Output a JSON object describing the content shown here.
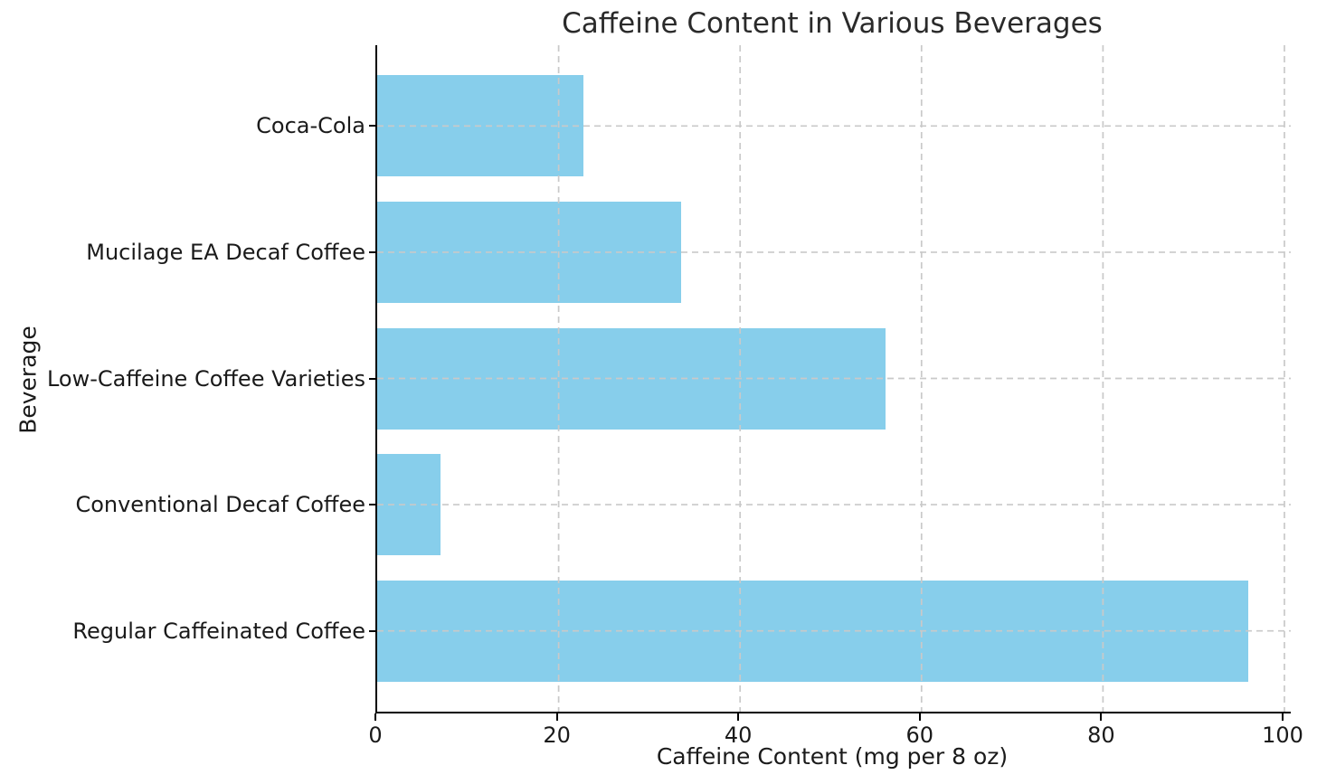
{
  "chart_data": {
    "type": "bar",
    "orientation": "horizontal",
    "title": "Caffeine Content in Various Beverages",
    "xlabel": "Caffeine Content (mg per 8 oz)",
    "ylabel": "Beverage",
    "categories_top_to_bottom": [
      "Coca-Cola",
      "Mucilage EA Decaf Coffee",
      "Low-Caffeine Coffee Varieties",
      "Conventional Decaf Coffee",
      "Regular Caffeinated Coffee"
    ],
    "values": [
      22.7,
      33.5,
      56,
      7,
      96
    ],
    "xticks": [
      0,
      20,
      40,
      60,
      80,
      100
    ],
    "xlim": [
      0,
      100.7
    ],
    "bar_color": "#87CEEB",
    "grid": true,
    "grid_style": "dashed",
    "grid_color": "#c9c9c9",
    "axis_color": "#000000",
    "text_color": "#1a1a1a",
    "background_color": "#ffffff",
    "legend": "none"
  }
}
